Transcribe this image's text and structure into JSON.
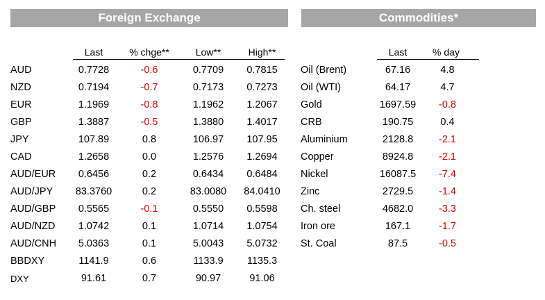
{
  "fx": {
    "title": "Foreign Exchange",
    "headers": [
      "Last",
      "% chge**",
      "Low**",
      "High**"
    ],
    "rows": [
      {
        "name": "AUD",
        "last": "0.7728",
        "chg": "-0.6",
        "low": "0.7709",
        "high": "0.7815",
        "neg": true
      },
      {
        "name": "NZD",
        "last": "0.7194",
        "chg": "-0.7",
        "low": "0.7173",
        "high": "0.7273",
        "neg": true
      },
      {
        "name": "EUR",
        "last": "1.1969",
        "chg": "-0.8",
        "low": "1.1962",
        "high": "1.2067",
        "neg": true
      },
      {
        "name": "GBP",
        "last": "1.3887",
        "chg": "-0.5",
        "low": "1.3880",
        "high": "1.4017",
        "neg": true
      },
      {
        "name": "JPY",
        "last": "107.89",
        "chg": "0.8",
        "low": "106.97",
        "high": "107.95",
        "neg": false
      },
      {
        "name": "CAD",
        "last": "1.2658",
        "chg": "0.0",
        "low": "1.2576",
        "high": "1.2694",
        "neg": false
      },
      {
        "name": "AUD/EUR",
        "last": "0.6456",
        "chg": "0.2",
        "low": "0.6434",
        "high": "0.6484",
        "neg": false
      },
      {
        "name": "AUD/JPY",
        "last": "83.3760",
        "chg": "0.2",
        "low": "83.0080",
        "high": "84.0410",
        "neg": false
      },
      {
        "name": "AUD/GBP",
        "last": "0.5565",
        "chg": "-0.1",
        "low": "0.5550",
        "high": "0.5598",
        "neg": true
      },
      {
        "name": "AUD/NZD",
        "last": "1.0742",
        "chg": "0.1",
        "low": "1.0714",
        "high": "1.0754",
        "neg": false
      },
      {
        "name": "AUD/CNH",
        "last": "5.0363",
        "chg": "0.1",
        "low": "5.0043",
        "high": "5.0732",
        "neg": false
      },
      {
        "name": "BBDXY",
        "last": "1141.9",
        "chg": "0.6",
        "low": "1133.9",
        "high": "1135.3",
        "neg": false
      },
      {
        "name": "DXY",
        "last": "91.61",
        "chg": "0.7",
        "low": "90.97",
        "high": "91.06",
        "neg": false
      }
    ]
  },
  "commodities": {
    "title": "Commodities*",
    "headers": [
      "Last",
      "% day"
    ],
    "rows": [
      {
        "name": "Oil (Brent)",
        "last": "67.16",
        "chg": "4.8",
        "neg": false
      },
      {
        "name": "Oil (WTI)",
        "last": "64.17",
        "chg": "4.7",
        "neg": false
      },
      {
        "name": "Gold",
        "last": "1697.59",
        "chg": "-0.8",
        "neg": true
      },
      {
        "name": "CRB",
        "last": "190.75",
        "chg": "0.4",
        "neg": false
      },
      {
        "name": "Aluminium",
        "last": "2128.8",
        "chg": "-2.1",
        "neg": true
      },
      {
        "name": "Copper",
        "last": "8924.8",
        "chg": "-2.1",
        "neg": true
      },
      {
        "name": "Nickel",
        "last": "16087.5",
        "chg": "-7.4",
        "neg": true
      },
      {
        "name": "Zinc",
        "last": "2729.5",
        "chg": "-1.4",
        "neg": true
      },
      {
        "name": "Ch. steel",
        "last": "4682.0",
        "chg": "-3.3",
        "neg": true
      },
      {
        "name": "Iron ore",
        "last": "167.1",
        "chg": "-1.7",
        "neg": true
      },
      {
        "name": "St. Coal",
        "last": "87.5",
        "chg": "-0.5",
        "neg": true
      }
    ]
  }
}
